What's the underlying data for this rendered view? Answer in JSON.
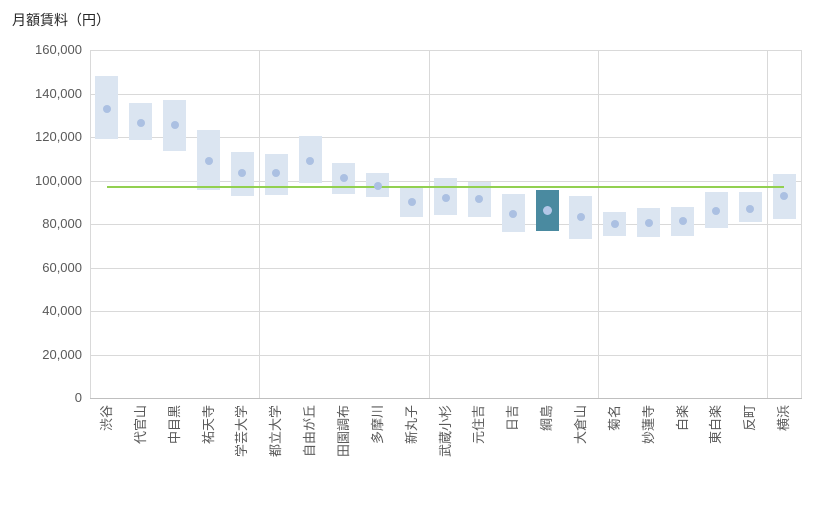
{
  "chart_data": {
    "type": "bar",
    "subtype": "floating-range-bars-with-mean-dots-and-reference-line",
    "title": "月額賃料（円）",
    "xlabel": "",
    "ylabel": "月額賃料（円）",
    "ylim": [
      0,
      160000
    ],
    "ytick_interval": 20000,
    "ytick_labels": [
      "0",
      "20,000",
      "40,000",
      "60,000",
      "80,000",
      "100,000",
      "120,000",
      "140,000",
      "160,000"
    ],
    "grid": true,
    "legend": false,
    "categories": [
      "渋谷",
      "代官山",
      "中目黒",
      "祐天寺",
      "学芸大学",
      "都立大学",
      "自由が丘",
      "田園調布",
      "多摩川",
      "新丸子",
      "武蔵小杉",
      "元住吉",
      "日吉",
      "綱島",
      "大倉山",
      "菊名",
      "妙蓮寺",
      "白楽",
      "東白楽",
      "反町",
      "横浜"
    ],
    "series": [
      {
        "name": "rent-range",
        "kind": "range",
        "low": [
          119000,
          118500,
          113500,
          95500,
          93000,
          93500,
          99000,
          94000,
          92500,
          83000,
          84000,
          83000,
          76500,
          77000,
          73000,
          74500,
          74000,
          74500,
          78000,
          81000,
          82500
        ],
        "high": [
          148000,
          135500,
          137000,
          123000,
          113000,
          112000,
          120500,
          108000,
          103500,
          96500,
          101000,
          99500,
          94000,
          95500,
          93000,
          85500,
          87500,
          88000,
          94500,
          94500,
          103000
        ]
      },
      {
        "name": "rent-mean-dot",
        "kind": "point",
        "values": [
          133000,
          126500,
          125500,
          109000,
          103500,
          103500,
          109000,
          101000,
          97500,
          90000,
          92000,
          91500,
          84500,
          86000,
          83000,
          80000,
          80500,
          81500,
          86000,
          87000,
          93000
        ]
      },
      {
        "name": "reference-line",
        "kind": "constant-line",
        "value": 97000
      }
    ],
    "highlighted_category": "綱島",
    "vertical_gridline_every_n_categories": 5,
    "colors": {
      "range_fill": "#dbe5f1",
      "highlight_fill": "#4a8aa0",
      "dot_fill": "#abc0e2",
      "highlight_dot_fill": "#b4c7e7",
      "reference_line": "#92d050",
      "gridline": "#d9d9d9",
      "axis_line": "#bfbfbf",
      "tick_text": "#595959",
      "title_text": "#262626"
    }
  }
}
